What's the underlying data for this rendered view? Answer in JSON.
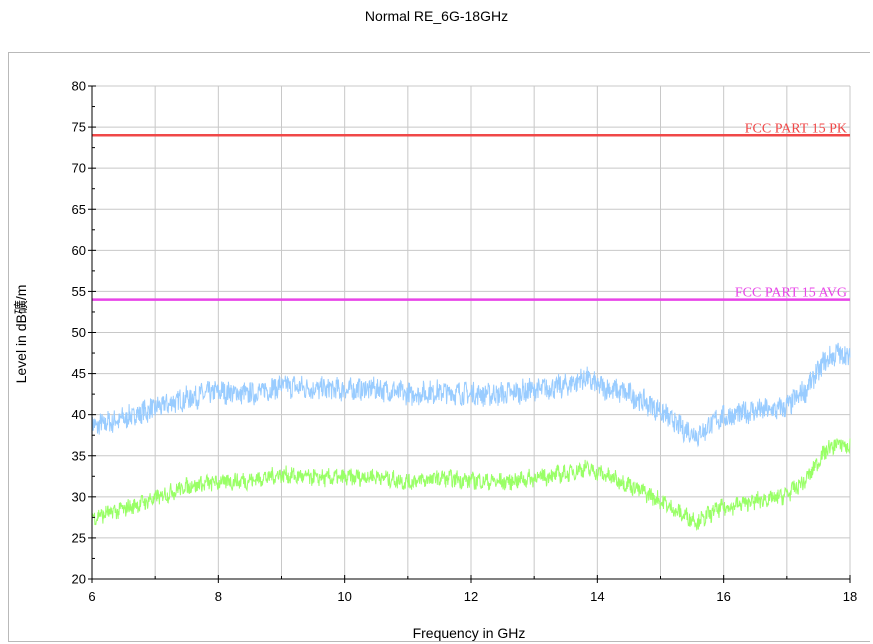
{
  "chart_data": {
    "type": "line",
    "title": "Normal RE_6G-18GHz",
    "xlabel": "Frequency in GHz",
    "ylabel": "Level in dB礦/m",
    "xlim": [
      6,
      18
    ],
    "ylim": [
      20,
      80
    ],
    "xticks": [
      6,
      8,
      10,
      12,
      14,
      16,
      18
    ],
    "yticks": [
      20,
      25,
      30,
      35,
      40,
      45,
      50,
      55,
      60,
      65,
      70,
      75,
      80
    ],
    "grid": true,
    "limit_lines": [
      {
        "name": "FCC PART 15  PK",
        "value": 74,
        "color": "#f04848"
      },
      {
        "name": "FCC PART 15 AVG",
        "value": 54,
        "color": "#e844e8"
      }
    ],
    "series": [
      {
        "color": "#99ccff",
        "x": [
          6.0,
          6.5,
          7.0,
          7.5,
          8.0,
          8.5,
          9.0,
          9.5,
          10.0,
          10.5,
          11.0,
          11.5,
          12.0,
          12.5,
          13.0,
          13.5,
          13.8,
          14.0,
          14.5,
          15.0,
          15.3,
          15.6,
          15.9,
          16.2,
          16.5,
          16.8,
          17.0,
          17.3,
          17.6,
          17.8,
          18.0
        ],
        "values": [
          38.5,
          39.5,
          40.8,
          42.0,
          42.8,
          42.5,
          43.5,
          43.2,
          43.0,
          43.2,
          42.5,
          42.8,
          42.5,
          42.5,
          43.0,
          43.5,
          44.5,
          43.5,
          42.5,
          40.5,
          38.5,
          37.5,
          39.5,
          40.0,
          40.5,
          40.5,
          41.0,
          43.0,
          46.5,
          47.5,
          47.0
        ]
      },
      {
        "color": "#99ff66",
        "x": [
          6.0,
          6.5,
          7.0,
          7.5,
          8.0,
          8.5,
          9.0,
          9.5,
          10.0,
          10.5,
          11.0,
          11.5,
          12.0,
          12.5,
          13.0,
          13.5,
          13.8,
          14.0,
          14.5,
          15.0,
          15.3,
          15.6,
          15.9,
          16.2,
          16.5,
          16.8,
          17.0,
          17.3,
          17.6,
          17.8,
          18.0
        ],
        "values": [
          27.5,
          28.5,
          29.8,
          31.3,
          31.8,
          32.0,
          32.7,
          32.3,
          32.3,
          32.5,
          31.8,
          32.3,
          32.0,
          31.8,
          32.3,
          32.8,
          33.5,
          33.0,
          31.5,
          29.5,
          28.0,
          27.0,
          28.5,
          29.0,
          29.5,
          29.8,
          30.3,
          32.0,
          35.5,
          36.5,
          36.0
        ]
      }
    ]
  }
}
